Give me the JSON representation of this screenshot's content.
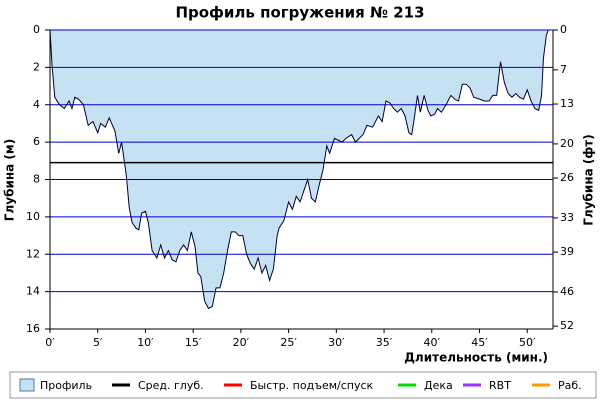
{
  "chart_data": {
    "type": "area",
    "title": "Профиль погружения № 213",
    "ylabel": "Глубина (м)",
    "y2label": "Глубина (фт)",
    "xlabel": "Длительность (мин.)",
    "xlim": [
      0,
      52.7
    ],
    "xticks": [
      {
        "value": 0,
        "label": "0′"
      },
      {
        "value": 5,
        "label": "5′"
      },
      {
        "value": 10,
        "label": "10′"
      },
      {
        "value": 15,
        "label": "15′"
      },
      {
        "value": 20,
        "label": "20′"
      },
      {
        "value": 25,
        "label": "25′"
      },
      {
        "value": 30,
        "label": "30′"
      },
      {
        "value": 35,
        "label": "35′"
      },
      {
        "value": 40,
        "label": "40′"
      },
      {
        "value": 45,
        "label": "45′"
      },
      {
        "value": 50,
        "label": "50′"
      }
    ],
    "ylim": [
      0,
      16
    ],
    "yticks": [
      0,
      2,
      4,
      6,
      8,
      10,
      12,
      14,
      16
    ],
    "y2lim": [
      0,
      52.5
    ],
    "y2ticks": [
      0,
      7,
      13,
      20,
      26,
      33,
      39,
      46,
      52
    ],
    "inverted": true,
    "grid": true,
    "grid_color": "#0000cc",
    "average_depth": 7.1,
    "average_color": "#000000",
    "series": [
      {
        "name": "Профиль",
        "color": "#c6e2f2",
        "x": [
          0,
          0.2,
          0.5,
          1,
          1.5,
          2,
          2.3,
          2.6,
          3,
          3.5,
          4,
          4.5,
          5,
          5.3,
          5.8,
          6.2,
          6.8,
          7.2,
          7.5,
          8,
          8.3,
          8.6,
          9,
          9.3,
          9.6,
          10,
          10.3,
          10.7,
          11.2,
          11.6,
          12,
          12.4,
          12.8,
          13.2,
          13.6,
          14,
          14.4,
          14.8,
          15.2,
          15.5,
          15.8,
          16.2,
          16.6,
          17,
          17.4,
          17.8,
          18.2,
          18.6,
          19,
          19.4,
          19.8,
          20.2,
          20.6,
          21,
          21.4,
          21.8,
          22.2,
          22.6,
          23,
          23.4,
          23.8,
          24,
          24.5,
          25,
          25.4,
          25.8,
          26.2,
          26.6,
          27,
          27.4,
          27.8,
          28.2,
          28.6,
          29,
          29.3,
          29.8,
          30.2,
          30.6,
          31,
          31.6,
          32,
          32.4,
          32.8,
          33.2,
          33.8,
          34.4,
          34.8,
          35.2,
          35.6,
          36,
          36.4,
          36.8,
          37.2,
          37.6,
          37.9,
          38.2,
          38.5,
          38.8,
          39.2,
          39.6,
          39.9,
          40.3,
          40.6,
          41,
          41.5,
          42,
          42.4,
          42.8,
          43.2,
          43.6,
          44,
          44.4,
          45,
          45.5,
          46,
          46.4,
          46.8,
          47.2,
          47.6,
          48,
          48.4,
          48.8,
          49.2,
          49.6,
          50,
          50.4,
          50.8,
          51.2,
          51.5,
          51.7,
          52,
          52.2
        ],
        "values": [
          0,
          1.8,
          3.6,
          4.0,
          4.2,
          3.8,
          4.2,
          3.6,
          3.7,
          4.0,
          5.1,
          4.9,
          5.5,
          5.0,
          5.2,
          4.7,
          5.4,
          6.6,
          6.0,
          7.8,
          9.5,
          10.3,
          10.6,
          10.7,
          9.8,
          9.7,
          10.3,
          11.8,
          12.2,
          11.5,
          12.2,
          11.8,
          12.3,
          12.4,
          11.8,
          11.5,
          11.8,
          10.8,
          11.6,
          13.0,
          13.2,
          14.5,
          14.9,
          14.8,
          13.8,
          13.8,
          13.0,
          11.8,
          10.8,
          10.8,
          11.0,
          11.0,
          12.0,
          12.5,
          12.8,
          12.2,
          13.0,
          12.6,
          13.4,
          12.8,
          11.0,
          10.6,
          10.2,
          9.2,
          9.6,
          8.9,
          9.2,
          8.6,
          8.0,
          9.0,
          9.2,
          8.3,
          7.5,
          6.2,
          6.6,
          5.8,
          5.9,
          6.0,
          5.8,
          5.6,
          6.0,
          5.8,
          5.6,
          5.1,
          5.2,
          4.6,
          4.9,
          3.8,
          3.9,
          4.2,
          4.4,
          4.2,
          4.6,
          5.5,
          5.6,
          4.6,
          3.5,
          4.4,
          3.5,
          4.3,
          4.6,
          4.5,
          4.2,
          4.4,
          4.0,
          3.5,
          3.7,
          3.8,
          2.9,
          2.9,
          3.1,
          3.6,
          3.7,
          3.8,
          3.8,
          3.5,
          3.5,
          1.7,
          2.8,
          3.4,
          3.6,
          3.4,
          3.6,
          3.7,
          3.2,
          3.8,
          4.2,
          4.3,
          3.5,
          1.5,
          0.3,
          0
        ]
      }
    ],
    "legend": [
      {
        "name": "Профиль",
        "color": "#c6e2f2"
      },
      {
        "name": "Сред. глуб.",
        "color": "#000000"
      },
      {
        "name": "Быстр. подъем/спуск",
        "color": "#ff0000"
      },
      {
        "name": "Дека",
        "color": "#00dd00"
      },
      {
        "name": "RBT",
        "color": "#9933ff"
      },
      {
        "name": "Раб.",
        "color": "#ff9900"
      }
    ]
  }
}
